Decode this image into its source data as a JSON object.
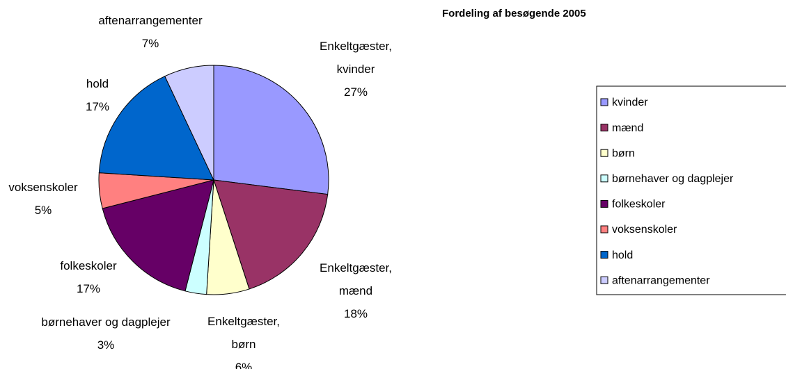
{
  "chart_data": {
    "type": "pie",
    "title": "Fordeling af besøgende 2005",
    "categories": [
      "kvinder",
      "mænd",
      "børn",
      "børnehaver og dagplejer",
      "folkeskoler",
      "voksenskoler",
      "hold",
      "aftenarrangementer"
    ],
    "slice_labels": [
      "Enkeltgæster,\nkvinder",
      "Enkeltgæster,\nmænd",
      "Enkeltgæster,\nbørn",
      "børnehaver og dagplejer",
      "folkeskoler",
      "voksenskoler",
      "hold",
      "aftenarrangementer"
    ],
    "values": [
      27,
      18,
      6,
      3,
      17,
      5,
      17,
      7
    ],
    "value_labels": [
      "27%",
      "18%",
      "6%",
      "3%",
      "17%",
      "5%",
      "17%",
      "7%"
    ],
    "colors": [
      "#9999ff",
      "#993366",
      "#ffffcc",
      "#ccffff",
      "#660066",
      "#ff8080",
      "#0066cc",
      "#ccccff"
    ],
    "legend": "right"
  }
}
